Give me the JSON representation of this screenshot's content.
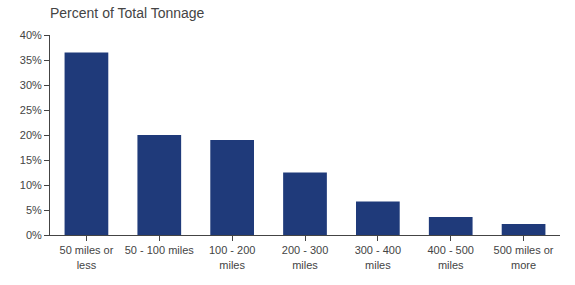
{
  "chart_data": {
    "type": "bar",
    "title": "Percent of Total Tonnage",
    "categories": [
      "50 miles or\nless",
      "50 - 100 miles",
      "100 - 200\nmiles",
      "200 - 300\nmiles",
      "300 - 400\nmiles",
      "400 - 500\nmiles",
      "500 miles or\nmore"
    ],
    "values": [
      36.5,
      20.0,
      19.0,
      12.5,
      6.7,
      3.6,
      2.2
    ],
    "color": "#1F3A7A",
    "ylim": [
      0,
      40
    ],
    "yticks": [
      {
        "value": 0,
        "label": "0%"
      },
      {
        "value": 5,
        "label": "5%"
      },
      {
        "value": 10,
        "label": "10%"
      },
      {
        "value": 15,
        "label": "15%"
      },
      {
        "value": 20,
        "label": "20%"
      },
      {
        "value": 25,
        "label": "25%"
      },
      {
        "value": 30,
        "label": "30%"
      },
      {
        "value": 35,
        "label": "35%"
      },
      {
        "value": 40,
        "label": "40%"
      }
    ],
    "grid": false
  }
}
